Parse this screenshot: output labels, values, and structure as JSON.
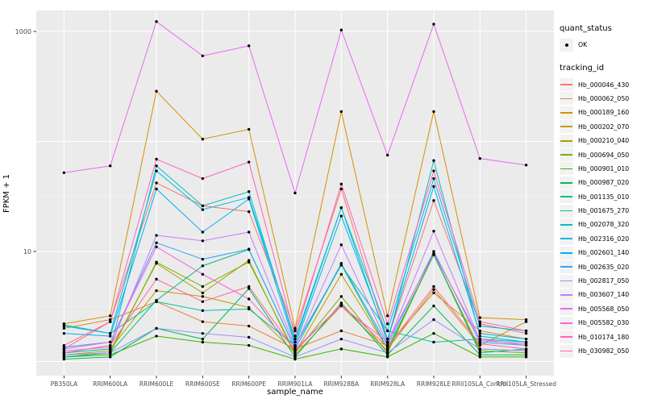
{
  "chart_data": {
    "type": "line",
    "xlabel": "sample_name",
    "ylabel": "FPKM + 1",
    "y_scale": "log10",
    "ylim": [
      0.9,
      1560
    ],
    "grid": true,
    "legend_position": "right",
    "panel_background": "#EBEBEB",
    "gridline_color": "#FFFFFF",
    "point_color": "#000000",
    "axis_text_color": "#4D4D4D",
    "y_ticks": [
      {
        "value": 10,
        "label": "10"
      },
      {
        "value": 1000,
        "label": "1000"
      }
    ],
    "y_gridlines_major": [
      1,
      10,
      100,
      1000
    ],
    "y_gridlines_minor": [
      3.162,
      31.62,
      316.2
    ],
    "categories": [
      "PB350LA",
      "RRIM600LA",
      "RRIM600LE",
      "RRIM600SE",
      "RRIM600PE",
      "RRIM901LA",
      "RRIM928BA",
      "RRIM928LA",
      "RRIM928LE",
      "RRII105LA_Control",
      "RRII105LA_Stressed"
    ],
    "series": [
      {
        "name": "Hb_000046_430",
        "color": "#F8766D",
        "values": [
          1.3,
          2.3,
          42,
          26,
          23,
          1.9,
          37,
          1.6,
          29,
          2.2,
          1.8
        ]
      },
      {
        "name": "Hb_000062_050",
        "color": "#EA8331",
        "values": [
          2.0,
          2.4,
          3.5,
          2.3,
          2.1,
          1.3,
          1.9,
          1.4,
          4.2,
          1.9,
          1.6
        ]
      },
      {
        "name": "Hb_000189_160",
        "color": "#D89000",
        "values": [
          2.2,
          2.6,
          286,
          105,
          129,
          2.0,
          187,
          2.6,
          187,
          2.5,
          2.4
        ]
      },
      {
        "name": "Hb_000202_070",
        "color": "#C09B00",
        "values": [
          1.2,
          1.3,
          4.4,
          3.9,
          3.1,
          1.2,
          6.2,
          1.3,
          4.5,
          1.4,
          2.3
        ]
      },
      {
        "name": "Hb_000210_040",
        "color": "#A3A500",
        "values": [
          1.15,
          1.25,
          7.8,
          4.2,
          8.3,
          1.15,
          3.2,
          1.25,
          9.3,
          1.3,
          1.25
        ]
      },
      {
        "name": "Hb_000694_050",
        "color": "#7CAE00",
        "values": [
          1.1,
          1.2,
          8.0,
          4.8,
          8.0,
          1.2,
          3.9,
          1.2,
          9.5,
          1.25,
          1.2
        ]
      },
      {
        "name": "Hb_000901_010",
        "color": "#39B600",
        "values": [
          1.1,
          1.15,
          1.7,
          1.5,
          1.4,
          1.05,
          1.3,
          1.1,
          1.8,
          1.1,
          1.1
        ]
      },
      {
        "name": "Hb_000987_020",
        "color": "#00BB4E",
        "values": [
          1.05,
          1.1,
          2.0,
          1.6,
          4.6,
          1.1,
          3.4,
          1.15,
          3.2,
          1.15,
          1.15
        ]
      },
      {
        "name": "Hb_001135_010",
        "color": "#00BF7D",
        "values": [
          1.1,
          1.2,
          3.6,
          7.4,
          10.4,
          1.3,
          7.6,
          1.3,
          9.4,
          1.2,
          1.3
        ]
      },
      {
        "name": "Hb_001675_270",
        "color": "#00C1A3",
        "values": [
          2.15,
          1.8,
          3.5,
          2.9,
          3.0,
          1.4,
          7.5,
          1.9,
          1.5,
          1.6,
          1.5
        ]
      },
      {
        "name": "Hb_002078_320",
        "color": "#00BFC4",
        "values": [
          1.2,
          1.3,
          60,
          26,
          35,
          1.5,
          25,
          1.5,
          67,
          1.7,
          1.5
        ]
      },
      {
        "name": "Hb_002316_020",
        "color": "#00BAE0",
        "values": [
          2.1,
          1.8,
          54,
          24,
          31,
          1.6,
          25,
          1.9,
          46,
          2.1,
          1.9
        ]
      },
      {
        "name": "Hb_002601_140",
        "color": "#00B0F6",
        "values": [
          1.8,
          1.7,
          37,
          15,
          30,
          1.4,
          21,
          1.6,
          39,
          1.8,
          1.6
        ]
      },
      {
        "name": "Hb_002635_020",
        "color": "#35A2FF",
        "values": [
          1.35,
          1.5,
          12,
          8.5,
          10.5,
          1.3,
          7.8,
          1.4,
          10,
          1.5,
          1.4
        ]
      },
      {
        "name": "Hb_002817_050",
        "color": "#9590FF",
        "values": [
          1.15,
          1.2,
          2.0,
          1.8,
          1.66,
          1.1,
          1.6,
          1.2,
          2.4,
          1.3,
          1.25
        ]
      },
      {
        "name": "Hb_003607_140",
        "color": "#C77CFF",
        "values": [
          1.25,
          1.35,
          14,
          12.5,
          15,
          1.35,
          11.5,
          1.45,
          15.3,
          1.55,
          1.45
        ]
      },
      {
        "name": "Hb_005568_050",
        "color": "#E76BF3",
        "values": [
          52,
          60,
          1230,
          600,
          740,
          34,
          1030,
          75,
          1165,
          70,
          61
        ]
      },
      {
        "name": "Hb_005582_030",
        "color": "#FA62DB",
        "values": [
          1.3,
          1.5,
          11,
          6.2,
          3.7,
          1.3,
          3.2,
          1.5,
          9.6,
          1.6,
          1.4
        ]
      },
      {
        "name": "Hb_010174_180",
        "color": "#FF62BC",
        "values": [
          1.4,
          2.3,
          69,
          46,
          65,
          1.7,
          41,
          2.2,
          54,
          2.3,
          1.9
        ]
      },
      {
        "name": "Hb_030982_050",
        "color": "#FF6598",
        "values": [
          1.2,
          1.4,
          5.6,
          3.5,
          4.8,
          1.25,
          3.3,
          1.35,
          4.8,
          1.45,
          1.3
        ]
      }
    ]
  },
  "legend": {
    "quant_status_title": "quant_status",
    "quant_status_items": [
      {
        "label": "OK",
        "shape": "point"
      }
    ],
    "tracking_id_title": "tracking_id"
  },
  "axes": {
    "x_title": "sample_name",
    "y_title": "FPKM + 1"
  }
}
